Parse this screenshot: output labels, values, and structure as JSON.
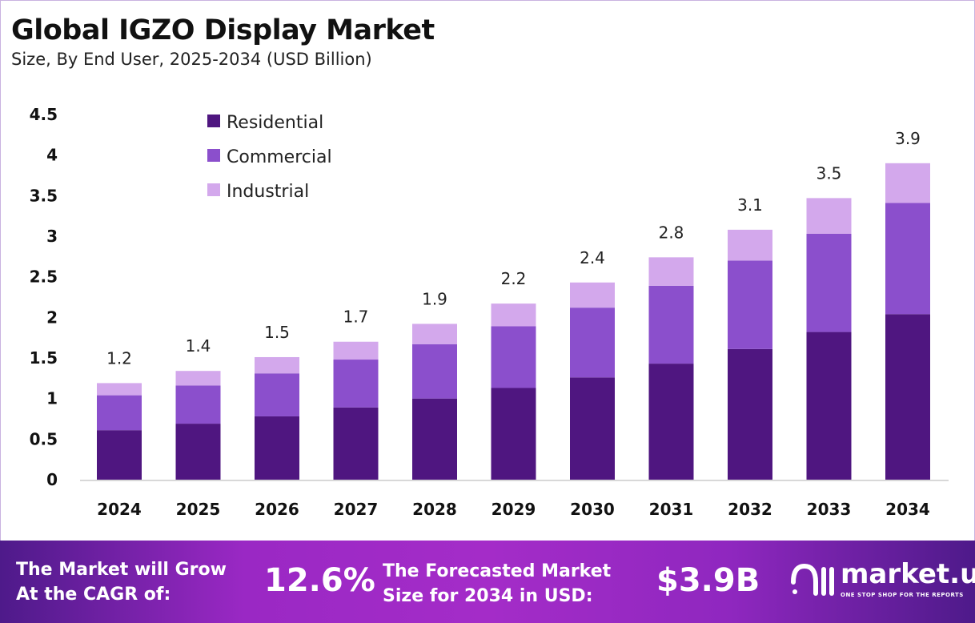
{
  "title": "Global IGZO Display Market",
  "subtitle": "Size, By End User, 2025-2034 (USD Billion)",
  "chart_data": {
    "type": "bar",
    "stacked": true,
    "categories": [
      "2024",
      "2025",
      "2026",
      "2027",
      "2028",
      "2029",
      "2030",
      "2031",
      "2032",
      "2033",
      "2034"
    ],
    "series": [
      {
        "name": "Residential",
        "color": "#4f1680",
        "values": [
          0.61,
          0.69,
          0.78,
          0.89,
          1.0,
          1.13,
          1.26,
          1.43,
          1.61,
          1.82,
          2.04
        ]
      },
      {
        "name": "Commercial",
        "color": "#8b4fcc",
        "values": [
          0.43,
          0.47,
          0.53,
          0.59,
          0.67,
          0.76,
          0.86,
          0.96,
          1.09,
          1.21,
          1.37
        ]
      },
      {
        "name": "Industrial",
        "color": "#d3a8ec",
        "values": [
          0.15,
          0.18,
          0.2,
          0.22,
          0.25,
          0.28,
          0.31,
          0.35,
          0.38,
          0.44,
          0.49
        ]
      }
    ],
    "totals_labels": [
      "1.2",
      "1.4",
      "1.5",
      "1.7",
      "1.9",
      "2.2",
      "2.4",
      "2.8",
      "3.1",
      "3.5",
      "3.9"
    ],
    "yticks": [
      "0",
      "0.5",
      "1",
      "1.5",
      "2",
      "2.5",
      "3",
      "3.5",
      "4",
      "4.5"
    ],
    "ylim": [
      0,
      4.5
    ],
    "grid": false,
    "legend_position": "top-left"
  },
  "banner": {
    "cagr_label_line1": "The Market will Grow",
    "cagr_label_line2": "At the CAGR of:",
    "cagr_value": "12.6%",
    "forecast_label_line1": "The Forecasted Market",
    "forecast_label_line2": "Size for 2034 in USD:",
    "forecast_value": "$3.9B",
    "logo_name": "market.us",
    "logo_tagline": "ONE STOP SHOP FOR THE REPORTS"
  }
}
